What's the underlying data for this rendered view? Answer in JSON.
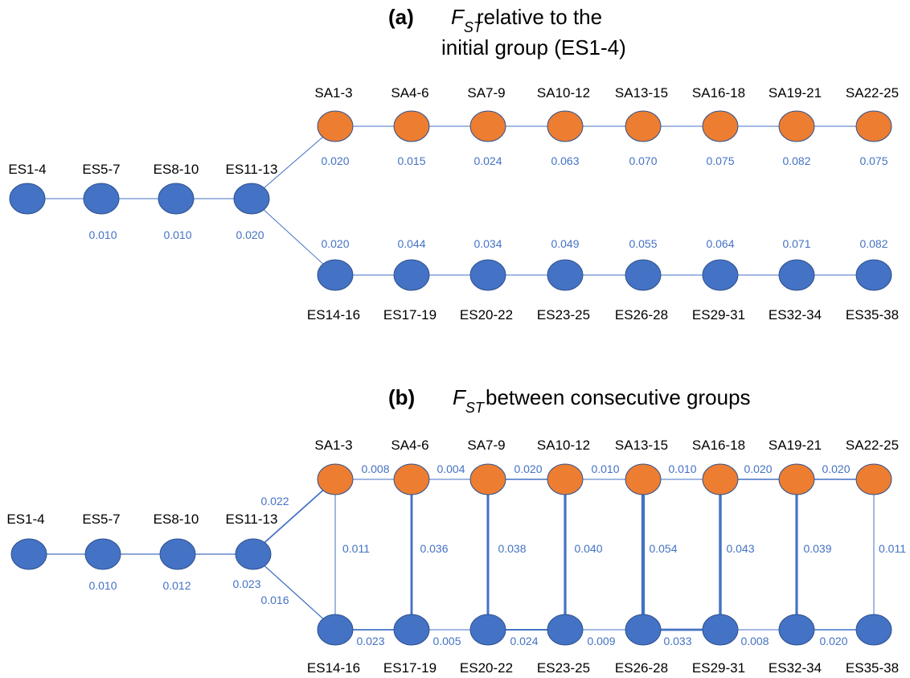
{
  "colors": {
    "es": "#4472C4",
    "sa": "#ED7D31",
    "edge": "#4472C4",
    "value": "#4472C4"
  },
  "panel_a": {
    "tag": "(a)",
    "fst_main": "F",
    "fst_sub": "ST",
    "title_line1": "relative to the",
    "title_line2": "initial group (ES1-4)",
    "es_chain": [
      {
        "label": "ES1-4",
        "value": ""
      },
      {
        "label": "ES5-7",
        "value": "0.010"
      },
      {
        "label": "ES8-10",
        "value": "0.010"
      },
      {
        "label": "ES11-13",
        "value": "0.020"
      }
    ],
    "sa_row": [
      {
        "label": "SA1-3",
        "value": "0.020"
      },
      {
        "label": "SA4-6",
        "value": "0.015"
      },
      {
        "label": "SA7-9",
        "value": "0.024"
      },
      {
        "label": "SA10-12",
        "value": "0.063"
      },
      {
        "label": "SA13-15",
        "value": "0.070"
      },
      {
        "label": "SA16-18",
        "value": "0.075"
      },
      {
        "label": "SA19-21",
        "value": "0.082"
      },
      {
        "label": "SA22-25",
        "value": "0.075"
      }
    ],
    "es_row": [
      {
        "label": "ES14-16",
        "value": "0.020"
      },
      {
        "label": "ES17-19",
        "value": "0.044"
      },
      {
        "label": "ES20-22",
        "value": "0.034"
      },
      {
        "label": "ES23-25",
        "value": "0.049"
      },
      {
        "label": "ES26-28",
        "value": "0.055"
      },
      {
        "label": "ES29-31",
        "value": "0.064"
      },
      {
        "label": "ES32-34",
        "value": "0.071"
      },
      {
        "label": "ES35-38",
        "value": "0.082"
      }
    ]
  },
  "panel_b": {
    "tag": "(b)",
    "fst_main": "F",
    "fst_sub": "ST",
    "title_line1": "between consecutive groups",
    "es_chain": [
      "ES1-4",
      "ES5-7",
      "ES8-10",
      "ES11-13"
    ],
    "es_chain_values": [
      "0.010",
      "0.012"
    ],
    "branch_values": {
      "to_sa": "0.022",
      "to_es_a": "0.023",
      "to_es_b": "0.016"
    },
    "sa_row": [
      "SA1-3",
      "SA4-6",
      "SA7-9",
      "SA10-12",
      "SA13-15",
      "SA16-18",
      "SA19-21",
      "SA22-25"
    ],
    "es_row": [
      "ES14-16",
      "ES17-19",
      "ES20-22",
      "ES23-25",
      "ES26-28",
      "ES29-31",
      "ES32-34",
      "ES35-38"
    ],
    "sa_edge_values": [
      "0.008",
      "0.004",
      "0.020",
      "0.010",
      "0.010",
      "0.020",
      "0.020"
    ],
    "es_edge_values": [
      "0.023",
      "0.005",
      "0.024",
      "0.009",
      "0.033",
      "0.008",
      "0.020"
    ],
    "vertical_values": [
      "0.011",
      "0.036",
      "0.038",
      "0.040",
      "0.054",
      "0.043",
      "0.039",
      "0.011"
    ]
  }
}
